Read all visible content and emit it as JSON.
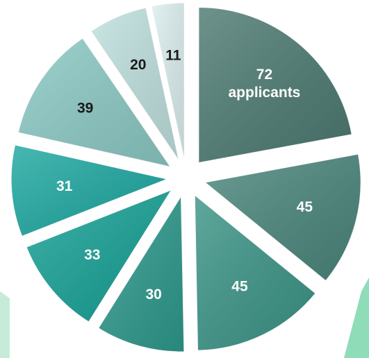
{
  "chart_data": {
    "type": "pie",
    "values": [
      72,
      45,
      45,
      30,
      33,
      31,
      39,
      20,
      11
    ],
    "value_labels": [
      "72 applicants",
      "45",
      "45",
      "30",
      "33",
      "31",
      "39",
      "20",
      "11"
    ],
    "colors": [
      "#4d7b72",
      "#4b877d",
      "#3c9587",
      "#2e9a8d",
      "#17a297",
      "#1fa9a2",
      "#8ccac5",
      "#bfe1df",
      "#ddeff0"
    ],
    "start_angle": 0,
    "direction": "clockwise",
    "exploded": true
  }
}
